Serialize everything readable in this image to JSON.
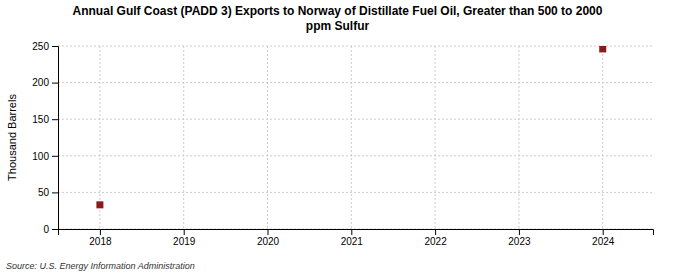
{
  "chart_data": {
    "type": "scatter",
    "title": "Annual Gulf Coast (PADD 3) Exports to Norway of Distillate Fuel Oil, Greater than 500 to 2000\nppm Sulfur",
    "ylabel": "Thousand Barrels",
    "annotations": [
      "Source: U.S. Energy Information Administration"
    ],
    "x": [
      2018,
      2024
    ],
    "values": [
      33,
      246
    ],
    "color": "#8B1A1A",
    "marker": "square",
    "xlim": [
      2017.5,
      2024.6
    ],
    "ylim": [
      0,
      250
    ],
    "xticks": [
      2018,
      2019,
      2020,
      2021,
      2022,
      2023,
      2024
    ],
    "yticks": [
      0,
      50,
      100,
      150,
      200,
      250
    ],
    "grid": true
  }
}
